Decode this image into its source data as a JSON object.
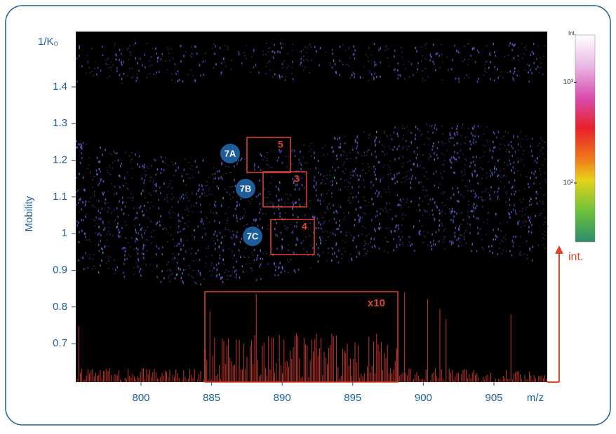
{
  "chart_data": {
    "type": "heatmap",
    "y_title": "1/K₀",
    "y_label": "Mobility",
    "x_label": "m/z",
    "categories": [
      "800",
      "885",
      "890",
      "895",
      "900",
      "905"
    ],
    "ylim": [
      0.595,
      1.551
    ],
    "yticks": [
      0.7,
      0.8,
      0.9,
      1.0,
      1.1,
      1.2,
      1.3,
      1.4
    ],
    "colorbar": {
      "title": "Int.",
      "log": true,
      "clim": [
        26,
        2950
      ],
      "ticks": [
        {
          "value": 1000,
          "label": "10³"
        },
        {
          "value": 100,
          "label": "10²"
        }
      ]
    },
    "annotations": [
      {
        "label": "7A",
        "count": 5
      },
      {
        "label": "7B",
        "count": 3
      },
      {
        "label": "7C",
        "count": 4
      }
    ],
    "inset_label": "x10",
    "arrow_label": "int."
  }
}
